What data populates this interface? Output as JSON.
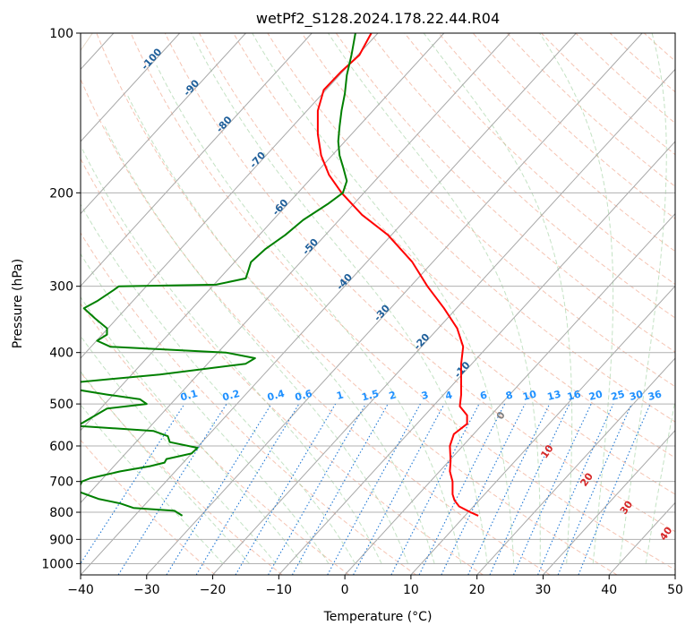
{
  "chart_data": {
    "type": "line",
    "subtype": "skew-t log-p diagram",
    "title": "wetPf2_S128.2024.178.22.44.R04",
    "xlabel": "Temperature (°C)",
    "ylabel": "Pressure (hPa)",
    "xlim": [
      -40,
      50
    ],
    "ylim": [
      1050,
      100
    ],
    "y_scale": "log",
    "grid": true,
    "x_ticks": [
      "−40",
      "−30",
      "−20",
      "−10",
      "0",
      "10",
      "20",
      "30",
      "40",
      "50"
    ],
    "y_ticks": [
      "100",
      "200",
      "300",
      "400",
      "500",
      "600",
      "700",
      "800",
      "900",
      "1000"
    ],
    "isotherm_labels": [
      "-100",
      "-90",
      "-80",
      "-70",
      "-60",
      "-50",
      "-40",
      "-30",
      "-20",
      "-10"
    ],
    "mixing_ratio_labels": [
      "0.1",
      "0.2",
      "0.4",
      "0.6",
      "1",
      "1.5",
      "2",
      "3",
      "4",
      "6",
      "8",
      "10",
      "13",
      "16",
      "20",
      "25",
      "30",
      "36"
    ],
    "moist_adiabat_labels": [
      "0",
      "10",
      "20",
      "30",
      "40"
    ],
    "series": [
      {
        "color": "#ff0000",
        "points": [
          [
            812,
            20.2
          ],
          [
            800,
            19
          ],
          [
            780,
            17.3
          ],
          [
            760,
            16.6
          ],
          [
            740,
            16.3
          ],
          [
            700,
            16.3
          ],
          [
            670,
            15.9
          ],
          [
            640,
            16.0
          ],
          [
            600,
            15.9
          ],
          [
            570,
            16.5
          ],
          [
            545,
            18.5
          ],
          [
            525,
            18.5
          ],
          [
            505,
            17.4
          ],
          [
            480,
            17.6
          ],
          [
            450,
            17.6
          ],
          [
            420,
            17.6
          ],
          [
            390,
            17.9
          ],
          [
            360,
            17.0
          ],
          [
            330,
            15.0
          ],
          [
            300,
            12.5
          ],
          [
            270,
            10.2
          ],
          [
            240,
            6.5
          ],
          [
            220,
            2.6
          ],
          [
            200,
            -0.5
          ],
          [
            185,
            -2.4
          ],
          [
            170,
            -3.6
          ],
          [
            155,
            -4.1
          ],
          [
            140,
            -4.1
          ],
          [
            128,
            -3.2
          ],
          [
            118,
            -0.5
          ],
          [
            110,
            2.2
          ],
          [
            100,
            4.0
          ]
        ]
      },
      {
        "color": "#008000",
        "points": [
          [
            812,
            -24.6
          ],
          [
            795,
            -25.8
          ],
          [
            785,
            -32
          ],
          [
            770,
            -34
          ],
          [
            755,
            -37.3
          ],
          [
            740,
            -39.2
          ],
          [
            730,
            -40.5
          ],
          [
            700,
            -39.8
          ],
          [
            690,
            -38.5
          ],
          [
            670,
            -34
          ],
          [
            655,
            -29.5
          ],
          [
            645,
            -27.3
          ],
          [
            635,
            -27.0
          ],
          [
            620,
            -23.2
          ],
          [
            605,
            -22.3
          ],
          [
            590,
            -26.5
          ],
          [
            575,
            -26.8
          ],
          [
            562,
            -29
          ],
          [
            550,
            -40.5
          ],
          [
            510,
            -36
          ],
          [
            500,
            -30
          ],
          [
            490,
            -31
          ],
          [
            480,
            -36
          ],
          [
            470,
            -40.5
          ],
          [
            455,
            -40.5
          ],
          [
            440,
            -28
          ],
          [
            420,
            -15
          ],
          [
            410,
            -13.6
          ],
          [
            400,
            -18
          ],
          [
            390,
            -35.5
          ],
          [
            380,
            -37.5
          ],
          [
            370,
            -36.0
          ],
          [
            360,
            -36.0
          ],
          [
            345,
            -37.8
          ],
          [
            330,
            -39.5
          ],
          [
            320,
            -37.5
          ],
          [
            305,
            -35.0
          ],
          [
            300,
            -34.2
          ],
          [
            298,
            -19.5
          ],
          [
            290,
            -15.0
          ],
          [
            280,
            -14.6
          ],
          [
            270,
            -14.2
          ],
          [
            255,
            -12.0
          ],
          [
            240,
            -9.0
          ],
          [
            225,
            -6.3
          ],
          [
            210,
            -2.6
          ],
          [
            200,
            -0.3
          ],
          [
            190,
            0.3
          ],
          [
            180,
            -0.2
          ],
          [
            170,
            -0.8
          ],
          [
            160,
            -1.0
          ],
          [
            150,
            -0.8
          ],
          [
            140,
            -0.5
          ],
          [
            130,
            0.0
          ],
          [
            120,
            0.3
          ],
          [
            110,
            1.0
          ],
          [
            100,
            1.6
          ]
        ]
      }
    ]
  }
}
